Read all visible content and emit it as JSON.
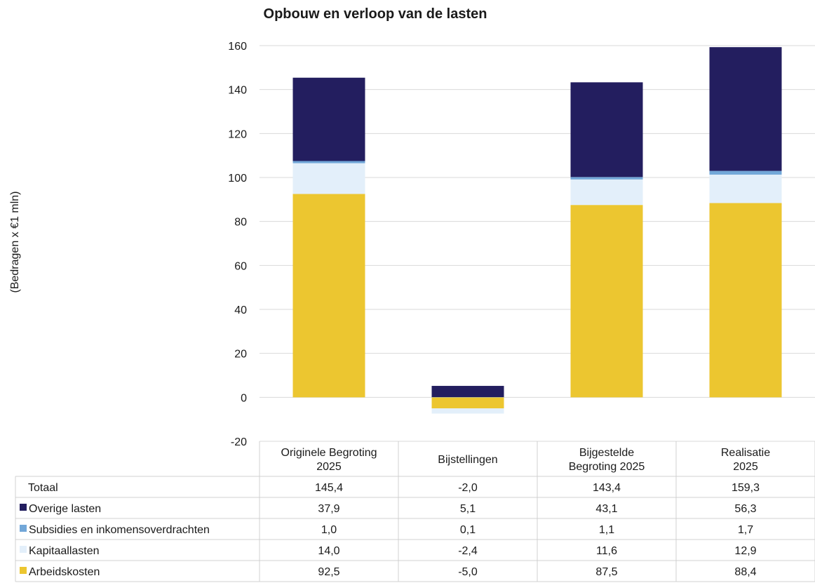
{
  "chart_data": {
    "type": "bar",
    "stacked": true,
    "title": "Opbouw en verloop van de lasten",
    "ylabel": "(Bedragen x €1 mln)",
    "ylim": [
      -20,
      160
    ],
    "yticks": [
      -20,
      0,
      20,
      40,
      60,
      80,
      100,
      120,
      140,
      160
    ],
    "grid": true,
    "categories": [
      [
        "Originele Begroting",
        "2025"
      ],
      [
        "Bijstellingen"
      ],
      [
        "Bijgestelde",
        "Begroting 2025"
      ],
      [
        "Realisatie",
        "2025"
      ]
    ],
    "series": [
      {
        "name": "Arbeidskosten",
        "color": "#ecc630",
        "values": [
          92.5,
          -5.0,
          87.5,
          88.4
        ]
      },
      {
        "name": "Kapitaallasten",
        "color": "#e3effa",
        "values": [
          14.0,
          -2.4,
          11.6,
          12.9
        ]
      },
      {
        "name": "Subsidies en inkomensoverdrachten",
        "color": "#72a7d8",
        "values": [
          1.0,
          0.1,
          1.1,
          1.7
        ]
      },
      {
        "name": "Overige lasten",
        "color": "#231e5f",
        "values": [
          37.9,
          5.1,
          43.1,
          56.3
        ]
      }
    ],
    "table": {
      "rows": [
        {
          "label": "Totaal",
          "cells": [
            "145,4",
            "-2,0",
            "143,4",
            "159,3"
          ]
        },
        {
          "label": "Overige lasten",
          "color": "#231e5f",
          "cells": [
            "37,9",
            "5,1",
            "43,1",
            "56,3"
          ]
        },
        {
          "label": "Subsidies en inkomensoverdrachten",
          "color": "#72a7d8",
          "cells": [
            "1,0",
            "0,1",
            "1,1",
            "1,7"
          ]
        },
        {
          "label": "Kapitaallasten",
          "color": "#e3effa",
          "cells": [
            "14,0",
            "-2,4",
            "11,6",
            "12,9"
          ]
        },
        {
          "label": "Arbeidskosten",
          "color": "#ecc630",
          "cells": [
            "92,5",
            "-5,0",
            "87,5",
            "88,4"
          ]
        }
      ]
    }
  }
}
